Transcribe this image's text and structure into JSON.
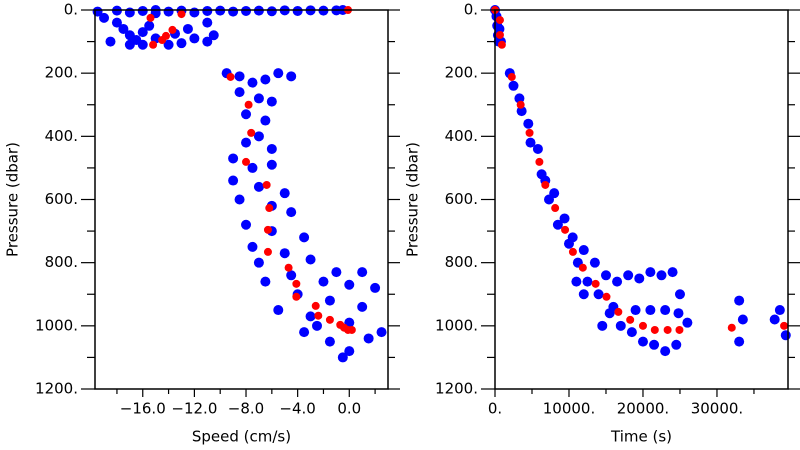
{
  "chart_data": [
    {
      "type": "scatter",
      "x_label": "Speed (cm/s)",
      "y_label": "Pressure (dbar)",
      "xlim": [
        -19.7,
        3.0
      ],
      "ylim": [
        0,
        1200
      ],
      "y_inverted": true,
      "xticks": [
        {
          "value": -16,
          "label": "−16.0"
        },
        {
          "value": -12,
          "label": "−12.0"
        },
        {
          "value": -8,
          "label": "−8.0"
        },
        {
          "value": -4,
          "label": "−4.0"
        },
        {
          "value": 0,
          "label": "0.0"
        }
      ],
      "x_minor_ticks": [
        -18,
        -14,
        -10,
        -6,
        -2,
        2
      ],
      "yticks": [
        {
          "value": 0,
          "label": "0."
        },
        {
          "value": 200,
          "label": "200."
        },
        {
          "value": 400,
          "label": "400."
        },
        {
          "value": 600,
          "label": "600."
        },
        {
          "value": 800,
          "label": "800."
        },
        {
          "value": 1000,
          "label": "1000."
        },
        {
          "value": 1200,
          "label": "1200."
        }
      ],
      "y_minor_ticks": [
        100,
        300,
        500,
        700,
        900,
        1100
      ],
      "series": [
        {
          "color": "#0000ff",
          "x": [
            -19.5,
            -18,
            -17,
            -16,
            -15,
            -14,
            -13,
            -12,
            -11,
            -10,
            -9,
            -8,
            -7,
            -6,
            -5,
            -4,
            -3,
            -2,
            -1,
            -0.5,
            -19,
            -18,
            -17.5,
            -17,
            -16.5,
            -16,
            -15.5,
            -15,
            -14,
            -13,
            -12,
            -11,
            -10.5,
            -11,
            -12.5,
            -18.5,
            -17,
            -16,
            -13.5,
            -15,
            -9.5,
            -8.5,
            -7.5,
            -6.5,
            -5.5,
            -4.5,
            -8.5,
            -7,
            -6,
            -8,
            -6.5,
            -7,
            -8,
            -6,
            -9,
            -7.5,
            -6,
            -9,
            -7,
            -5,
            -8.5,
            -6,
            -4.5,
            -8,
            -6,
            -3.5,
            -7.5,
            -5,
            -3,
            -1,
            1,
            -7,
            -4.5,
            -2,
            0,
            2,
            -6.5,
            -4,
            -1.5,
            1,
            -5.5,
            -3,
            0,
            2.5,
            -3.5,
            -1.5,
            0,
            1.5,
            -2.5,
            -0.5
          ],
          "y": [
            5,
            2,
            8,
            3,
            0,
            5,
            2,
            8,
            3,
            2,
            5,
            3,
            2,
            4,
            1,
            3,
            1,
            2,
            1,
            0,
            25,
            40,
            60,
            80,
            95,
            70,
            50,
            90,
            110,
            105,
            90,
            100,
            80,
            40,
            60,
            100,
            110,
            110,
            75,
            10,
            200,
            210,
            230,
            220,
            200,
            210,
            260,
            280,
            290,
            330,
            350,
            400,
            420,
            440,
            470,
            500,
            490,
            540,
            560,
            580,
            600,
            620,
            640,
            680,
            700,
            720,
            750,
            770,
            790,
            830,
            830,
            800,
            840,
            860,
            870,
            880,
            860,
            900,
            920,
            940,
            950,
            970,
            990,
            1020,
            1020,
            1050,
            1080,
            1040,
            1000,
            1100
          ]
        },
        {
          "color": "#ff0000",
          "x": [
            -15.4,
            -13.0,
            -13.7,
            -14.5,
            -15.2,
            -14.2,
            -0.1,
            -9.2,
            -7.8,
            -7.6,
            -8.0,
            -6.4,
            -6.2,
            -6.3,
            -6.3,
            -4.7,
            -4.1,
            -4.1,
            -2.6,
            -2.4,
            -1.5,
            -0.7,
            -0.4,
            -0.1,
            0.2
          ],
          "y": [
            25,
            13,
            63,
            95,
            110,
            82,
            0,
            212,
            300,
            389,
            481,
            554,
            627,
            696,
            766,
            816,
            867,
            908,
            937,
            968,
            981,
            997,
            1006,
            1013,
            1013
          ]
        }
      ]
    },
    {
      "type": "scatter",
      "x_label": "Time (s)",
      "y_label": "Pressure (dbar)",
      "xlim": [
        0,
        39600
      ],
      "ylim": [
        0,
        1200
      ],
      "y_inverted": true,
      "xticks": [
        {
          "value": 0,
          "label": "0."
        },
        {
          "value": 10000,
          "label": "10000."
        },
        {
          "value": 20000,
          "label": "20000."
        },
        {
          "value": 30000,
          "label": "30000."
        }
      ],
      "x_minor_ticks": [
        5000,
        15000,
        25000,
        35000
      ],
      "yticks": [
        {
          "value": 0,
          "label": "0."
        },
        {
          "value": 200,
          "label": "200."
        },
        {
          "value": 400,
          "label": "400."
        },
        {
          "value": 600,
          "label": "600."
        },
        {
          "value": 800,
          "label": "800."
        },
        {
          "value": 1000,
          "label": "1000."
        },
        {
          "value": 1200,
          "label": "1200."
        }
      ],
      "y_minor_ticks": [
        100,
        300,
        500,
        700,
        900,
        1100
      ],
      "series": [
        {
          "color": "#0000ff",
          "x": [
            0,
            200,
            300,
            400,
            500,
            600,
            800,
            2000,
            2500,
            3300,
            3600,
            4500,
            4800,
            5800,
            6300,
            6800,
            7300,
            8000,
            8500,
            9400,
            10000,
            10500,
            11200,
            12000,
            12500,
            13500,
            14000,
            15000,
            15500,
            16500,
            17000,
            18000,
            18500,
            19500,
            20000,
            21000,
            21500,
            22500,
            23000,
            24000,
            24500,
            25000,
            26000,
            19000,
            21000,
            23000,
            24800,
            33000,
            33000,
            33500,
            37800,
            38500,
            39300,
            14500,
            16000,
            12000,
            11000
          ],
          "y": [
            0,
            20,
            50,
            80,
            100,
            60,
            100,
            200,
            240,
            280,
            320,
            360,
            420,
            440,
            520,
            540,
            600,
            580,
            680,
            660,
            740,
            720,
            800,
            760,
            860,
            800,
            900,
            840,
            960,
            860,
            1000,
            840,
            1020,
            850,
            1050,
            830,
            1060,
            840,
            1080,
            830,
            1060,
            900,
            990,
            950,
            950,
            950,
            960,
            920,
            1050,
            980,
            980,
            950,
            1030,
            1000,
            940,
            900,
            860
          ]
        },
        {
          "color": "#ff0000",
          "x": [
            0,
            670,
            670,
            930,
            2270,
            3470,
            4670,
            6000,
            6800,
            8130,
            9470,
            10530,
            11870,
            13600,
            15070,
            16670,
            18270,
            20000,
            21600,
            23330,
            24930,
            32000,
            39070
          ],
          "y": [
            0,
            32,
            79,
            110,
            212,
            300,
            389,
            481,
            554,
            627,
            696,
            766,
            816,
            867,
            908,
            956,
            981,
            1000,
            1013,
            1013,
            1013,
            1006,
            1000
          ]
        }
      ]
    }
  ]
}
